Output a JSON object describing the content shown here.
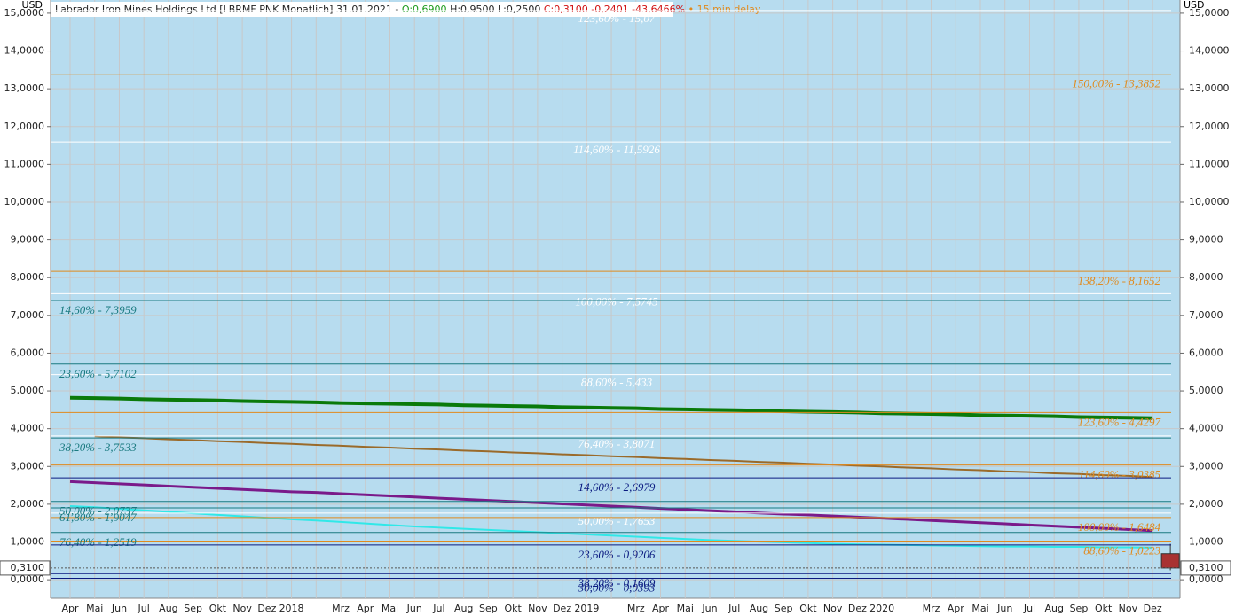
{
  "chart_data": {
    "type": "line",
    "title": {
      "name": "Labrador Iron Mines Holdings Ltd [LBRMF PNK Monatlich] 31.01.2021 -",
      "open": "O:0,6900",
      "high": "H:0,9500",
      "low": "L:0,2500",
      "close": "C:0,3100 -0,2401 -43,6466%",
      "delay": "• 15 min delay"
    },
    "ylabel": "USD",
    "categories": [
      "Apr",
      "Mai",
      "Jun",
      "Jul",
      "Aug",
      "Sep",
      "Okt",
      "Nov",
      "Dez",
      "2018",
      null,
      "Mrz",
      "Apr",
      "Mai",
      "Jun",
      "Jul",
      "Aug",
      "Sep",
      "Okt",
      "Nov",
      "Dez",
      "2019",
      null,
      "Mrz",
      "Apr",
      "Mai",
      "Jun",
      "Jul",
      "Aug",
      "Sep",
      "Okt",
      "Nov",
      "Dez",
      "2020",
      null,
      "Mrz",
      "Apr",
      "Mai",
      "Jun",
      "Jul",
      "Aug",
      "Sep",
      "Okt",
      "Nov",
      "Dez"
    ],
    "ylim": [
      -0.49,
      15.35
    ],
    "yticks": [
      {
        "value": 0,
        "label": "0,0000"
      },
      {
        "value": 1,
        "label": "1,0000"
      },
      {
        "value": 2,
        "label": "2,0000"
      },
      {
        "value": 3,
        "label": "3,0000"
      },
      {
        "value": 4,
        "label": "4,0000"
      },
      {
        "value": 5,
        "label": "5,0000"
      },
      {
        "value": 6,
        "label": "6,0000"
      },
      {
        "value": 7,
        "label": "7,0000"
      },
      {
        "value": 8,
        "label": "8,0000"
      },
      {
        "value": 9,
        "label": "9,0000"
      },
      {
        "value": 10,
        "label": "10,0000"
      },
      {
        "value": 11,
        "label": "11,0000"
      },
      {
        "value": 12,
        "label": "12,0000"
      },
      {
        "value": 13,
        "label": "13,0000"
      },
      {
        "value": 14,
        "label": "14,0000"
      },
      {
        "value": 15,
        "label": "15,0000"
      }
    ],
    "grid": true,
    "series": [
      {
        "color": "#0a7a0a",
        "width": 4,
        "values": [
          4.82,
          4.81,
          4.8,
          4.78,
          4.77,
          4.76,
          4.75,
          4.73,
          4.72,
          4.71,
          4.7,
          4.68,
          4.67,
          4.66,
          4.65,
          4.64,
          4.62,
          4.61,
          4.6,
          4.59,
          4.57,
          4.56,
          4.55,
          4.54,
          4.52,
          4.51,
          4.5,
          4.49,
          4.48,
          4.46,
          4.45,
          4.44,
          4.43,
          4.41,
          4.4,
          4.39,
          4.38,
          4.36,
          4.35,
          4.34,
          4.33,
          4.31,
          4.3,
          4.29,
          4.28
        ]
      },
      {
        "color": "#9a6a2a",
        "width": 2,
        "values": [
          null,
          3.8,
          3.77,
          3.75,
          3.72,
          3.7,
          3.67,
          3.65,
          3.62,
          3.6,
          3.57,
          3.55,
          3.52,
          3.5,
          3.47,
          3.45,
          3.42,
          3.4,
          3.37,
          3.35,
          3.32,
          3.3,
          3.27,
          3.25,
          3.22,
          3.2,
          3.17,
          3.15,
          3.12,
          3.1,
          3.07,
          3.05,
          3.02,
          3.0,
          2.97,
          2.95,
          2.92,
          2.9,
          2.87,
          2.85,
          2.82,
          2.8,
          2.77,
          2.75,
          2.72
        ]
      },
      {
        "color": "#7a1a8a",
        "width": 3,
        "values": [
          2.6,
          2.57,
          2.54,
          2.51,
          2.48,
          2.45,
          2.42,
          2.39,
          2.36,
          2.33,
          2.31,
          2.28,
          2.25,
          2.22,
          2.19,
          2.16,
          2.13,
          2.1,
          2.07,
          2.04,
          2.01,
          1.98,
          1.95,
          1.92,
          1.89,
          1.86,
          1.83,
          1.8,
          1.77,
          1.74,
          1.72,
          1.69,
          1.66,
          1.63,
          1.6,
          1.57,
          1.54,
          1.51,
          1.48,
          1.45,
          1.42,
          1.39,
          1.36,
          1.33,
          1.3
        ]
      },
      {
        "color": "#30e8e8",
        "width": 2,
        "values": [
          1.95,
          1.92,
          1.88,
          1.84,
          1.8,
          1.76,
          1.72,
          1.68,
          1.64,
          1.6,
          1.57,
          1.53,
          1.49,
          1.45,
          1.41,
          1.38,
          1.35,
          1.32,
          1.29,
          1.26,
          1.23,
          1.2,
          1.17,
          1.14,
          1.11,
          1.08,
          1.05,
          1.03,
          1.01,
          0.99,
          0.97,
          0.95,
          0.94,
          0.93,
          0.92,
          0.91,
          0.9,
          0.89,
          0.88,
          0.88,
          0.87,
          0.87,
          0.86,
          0.86,
          0.85
        ]
      }
    ],
    "levels": [
      {
        "label": "123,60% - 15,07",
        "value": 15.07,
        "color": "#ffffff",
        "side": "center"
      },
      {
        "label": "114,60% - 11,5926",
        "value": 11.5926,
        "color": "#ffffff",
        "side": "center"
      },
      {
        "label": "100,00% - 7,5745",
        "value": 7.5745,
        "color": "#ffffff",
        "side": "center"
      },
      {
        "label": "88,60% - 5,433",
        "value": 5.433,
        "color": "#ffffff",
        "side": "center"
      },
      {
        "label": "76,40% - 3,8071",
        "value": 3.8071,
        "color": "#ffffff",
        "side": "center"
      },
      {
        "label": "50,00% - 1,7653",
        "value": 1.7653,
        "color": "#ffffff",
        "side": "center"
      },
      {
        "label": "150,00% - 13,3852",
        "value": 13.3852,
        "color": "#e08a1e",
        "side": "right"
      },
      {
        "label": "138,20% - 8,1652",
        "value": 8.1652,
        "color": "#e08a1e",
        "side": "right"
      },
      {
        "label": "123,60% - 4,4297",
        "value": 4.4297,
        "color": "#e08a1e",
        "side": "right"
      },
      {
        "label": "114,60% - 3,0385",
        "value": 3.0385,
        "color": "#e08a1e",
        "side": "right"
      },
      {
        "label": "100,00% - 1,6484",
        "value": 1.6484,
        "color": "#e08a1e",
        "side": "right"
      },
      {
        "label": "88,60% - 1,0223",
        "value": 1.0223,
        "color": "#e08a1e",
        "side": "right"
      },
      {
        "label": "14,60% - 7,3959",
        "value": 7.3959,
        "color": "#1a7a80",
        "side": "left"
      },
      {
        "label": "23,60% - 5,7102",
        "value": 5.7102,
        "color": "#1a7a80",
        "side": "left"
      },
      {
        "label": "38,20% - 3,7533",
        "value": 3.7533,
        "color": "#1a7a80",
        "side": "left"
      },
      {
        "label": "50,00% - 2,0737",
        "value": 2.0737,
        "color": "#1a7a80",
        "side": "left"
      },
      {
        "label": "61,80% - 1,9047",
        "value": 1.9047,
        "color": "#1a7a80",
        "side": "left"
      },
      {
        "label": "76,40% - 1,2519",
        "value": 1.2519,
        "color": "#1a7a80",
        "side": "left"
      },
      {
        "label": "14,60% - 2,6979",
        "value": 2.6979,
        "color": "#0a1a80",
        "side": "center"
      },
      {
        "label": "23,60% - 0,9206",
        "value": 0.9206,
        "color": "#0a1a80",
        "side": "center"
      },
      {
        "label": "38,20% - 0,1609",
        "value": 0.1609,
        "color": "#0a1a80",
        "side": "center"
      },
      {
        "label": "30,00% - 0,0393",
        "value": 0.0393,
        "color": "#0a1a80",
        "side": "center"
      }
    ],
    "last_price": {
      "value": 0.31,
      "label": "0,3100"
    },
    "last_candle": {
      "open": 0.69,
      "high": 0.95,
      "low": 0.25,
      "close": 0.31,
      "color": "#a83232"
    }
  }
}
